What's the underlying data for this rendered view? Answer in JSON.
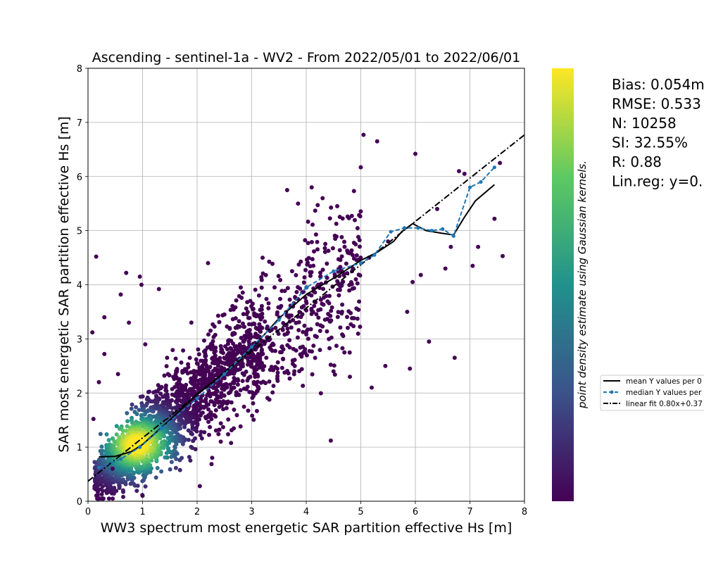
{
  "chart_data": {
    "type": "scatter",
    "title": "Ascending - sentinel-1a - WV2 - From 2022/05/01 to 2022/06/01",
    "xlabel": "WW3 spectrum most energetic SAR partition effective Hs [m]",
    "ylabel": "SAR most energetic SAR partition effective Hs [m]",
    "xlim": [
      0,
      8
    ],
    "ylim": [
      0,
      8
    ],
    "xticks": [
      "0",
      "1",
      "2",
      "3",
      "4",
      "5",
      "6",
      "7",
      "8"
    ],
    "yticks": [
      "0",
      "1",
      "2",
      "3",
      "4",
      "5",
      "6",
      "7",
      "8"
    ],
    "grid": true,
    "colorbar_label": "point density estimate using Gaussian kernels.",
    "colormap": [
      "#440154",
      "#3b528b",
      "#21918c",
      "#5ec962",
      "#fde725"
    ],
    "stats": [
      "Bias: 0.054m",
      "RMSE: 0.533",
      "N: 10258",
      "SI: 32.55%",
      "R: 0.88",
      "Lin.reg: y=0."
    ],
    "legend": {
      "position": "right",
      "entries": [
        "mean Y values per 0",
        "median Y values per",
        "linear fit 0.80x+0.37"
      ]
    },
    "linear_fit": {
      "slope": 0.8,
      "intercept": 0.37,
      "x_range": [
        0,
        8
      ]
    },
    "mean_series": {
      "name": "mean Y values per 0",
      "color": "#000000",
      "x": [
        0.2,
        0.5,
        0.8,
        1.0,
        1.5,
        2.0,
        2.5,
        3.0,
        3.5,
        4.0,
        4.5,
        5.0,
        5.3,
        5.6,
        5.75,
        5.95,
        6.2,
        6.5,
        6.7,
        6.9,
        7.1,
        7.45
      ],
      "y": [
        0.82,
        0.83,
        0.92,
        1.05,
        1.5,
        1.98,
        2.38,
        2.82,
        3.38,
        3.82,
        4.12,
        4.45,
        4.6,
        4.8,
        4.98,
        5.13,
        5.0,
        4.95,
        4.92,
        5.25,
        5.55,
        5.85
      ]
    },
    "median_series": {
      "name": "median Y values per",
      "color": "#1f77b4",
      "x": [
        0.2,
        0.6,
        0.95,
        1.35,
        2.0,
        2.5,
        3.0,
        3.5,
        4.0,
        4.5,
        5.0,
        5.25,
        5.55,
        5.8,
        6.05,
        6.3,
        6.5,
        6.7,
        7.0,
        7.2,
        7.45
      ],
      "y": [
        0.62,
        0.78,
        1.0,
        1.35,
        1.9,
        2.35,
        2.85,
        3.35,
        3.95,
        4.25,
        4.4,
        4.55,
        4.98,
        5.05,
        5.05,
        5.0,
        5.03,
        4.9,
        5.8,
        5.9,
        6.17
      ]
    },
    "outliers": {
      "x": [
        0.08,
        0.1,
        0.15,
        0.2,
        0.3,
        0.3,
        0.45,
        0.55,
        0.6,
        0.7,
        0.75,
        0.95,
        0.98,
        1.0,
        1.05,
        1.3,
        1.45,
        2.05,
        2.2,
        2.8,
        3.2,
        3.65,
        3.85,
        4.1,
        4.3,
        4.45,
        4.5,
        4.7,
        4.8,
        5.0,
        5.05,
        5.2,
        5.3,
        5.45,
        5.5,
        5.85,
        5.9,
        5.95,
        6.0,
        6.1,
        6.25,
        6.4,
        6.55,
        6.65,
        6.72,
        6.8,
        6.9,
        7.05,
        7.15,
        7.45,
        7.55,
        7.6,
        5.15,
        4.85,
        2.5,
        3.05
      ],
      "y": [
        3.12,
        1.52,
        4.52,
        2.2,
        3.4,
        2.72,
        0.6,
        2.35,
        3.82,
        4.22,
        3.3,
        4.15,
        4.0,
        0.1,
        2.9,
        3.92,
        2.65,
        0.28,
        4.4,
        3.95,
        4.5,
        5.75,
        5.5,
        5.8,
        5.6,
        1.12,
        2.4,
        2.75,
        2.3,
        6.17,
        6.77,
        2.1,
        6.65,
        2.5,
        4.8,
        3.5,
        2.45,
        4.05,
        6.42,
        4.18,
        2.95,
        5.4,
        4.3,
        4.7,
        2.65,
        6.1,
        6.05,
        4.35,
        4.7,
        5.22,
        6.25,
        4.53,
        4.5,
        4.55,
        3.45,
        2.85
      ]
    }
  }
}
